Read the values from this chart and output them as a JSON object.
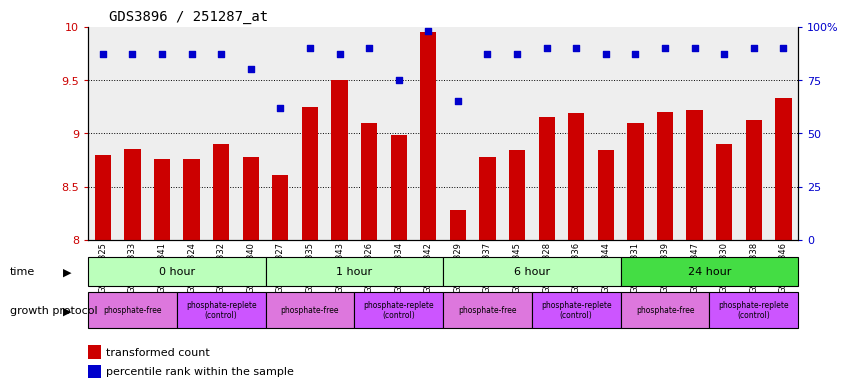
{
  "title": "GDS3896 / 251287_at",
  "samples": [
    "GSM618325",
    "GSM618333",
    "GSM618341",
    "GSM618324",
    "GSM618332",
    "GSM618340",
    "GSM618327",
    "GSM618335",
    "GSM618343",
    "GSM618326",
    "GSM618334",
    "GSM618342",
    "GSM618329",
    "GSM618337",
    "GSM618345",
    "GSM618328",
    "GSM618336",
    "GSM618344",
    "GSM618331",
    "GSM618339",
    "GSM618347",
    "GSM618330",
    "GSM618338",
    "GSM618346"
  ],
  "transformed_count": [
    8.8,
    8.85,
    8.76,
    8.76,
    8.9,
    8.78,
    8.61,
    9.25,
    9.5,
    9.1,
    8.98,
    9.95,
    8.28,
    8.78,
    8.84,
    9.15,
    9.19,
    8.84,
    9.1,
    9.2,
    9.22,
    8.9,
    9.12,
    9.33
  ],
  "percentile_rank": [
    87,
    87,
    87,
    87,
    87,
    80,
    62,
    90,
    87,
    90,
    75,
    98,
    65,
    87,
    87,
    90,
    90,
    87,
    87,
    90,
    90,
    87,
    90,
    90
  ],
  "ylim_left": [
    8.0,
    10.0
  ],
  "ylim_right": [
    0,
    100
  ],
  "yticks_left": [
    8.0,
    8.5,
    9.0,
    9.5,
    10.0
  ],
  "yticks_right": [
    0,
    25,
    50,
    75,
    100
  ],
  "bar_color": "#cc0000",
  "scatter_color": "#0000cc",
  "bg_color": "#eeeeee",
  "time_colors": [
    "#bbffbb",
    "#bbffbb",
    "#bbffbb",
    "#44dd44"
  ],
  "time_labels": [
    "0 hour",
    "1 hour",
    "6 hour",
    "24 hour"
  ],
  "time_starts": [
    0,
    6,
    12,
    18
  ],
  "time_ends": [
    6,
    12,
    18,
    24
  ],
  "prot_colors": [
    "#dd77dd",
    "#cc55ff",
    "#dd77dd",
    "#cc55ff",
    "#dd77dd",
    "#cc55ff",
    "#dd77dd",
    "#cc55ff"
  ],
  "prot_labels": [
    "phosphate-free",
    "phosphate-replete\n(control)",
    "phosphate-free",
    "phosphate-replete\n(control)",
    "phosphate-free",
    "phosphate-replete\n(control)",
    "phosphate-free",
    "phosphate-replete\n(control)"
  ],
  "prot_starts": [
    0,
    3,
    6,
    9,
    12,
    15,
    18,
    21
  ],
  "prot_ends": [
    3,
    6,
    9,
    12,
    15,
    18,
    21,
    24
  ],
  "legend_bar_label": "transformed count",
  "legend_scatter_label": "percentile rank within the sample",
  "label_time": "time",
  "label_protocol": "growth protocol"
}
